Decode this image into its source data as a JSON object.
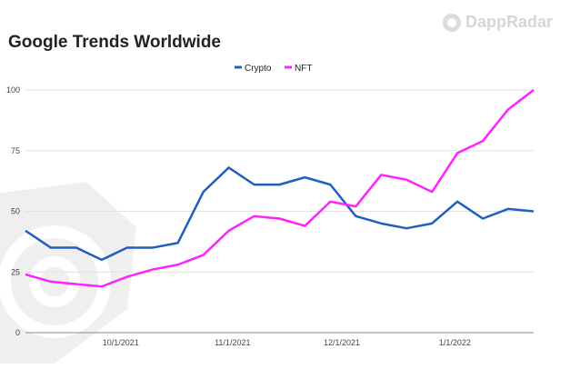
{
  "logo": {
    "text": "DappRadar"
  },
  "chart_data": {
    "type": "line",
    "title": "Google Trends Worldwide",
    "xlabel": "",
    "ylabel": "",
    "ylim": [
      0,
      100
    ],
    "yticks": [
      "0",
      "25",
      "50",
      "75",
      "100"
    ],
    "xtick_labels": [
      "10/1/2021",
      "11/1/2021",
      "12/1/2021",
      "1/1/2022"
    ],
    "xtick_positions": [
      3.75,
      8.15,
      12.45,
      16.9
    ],
    "x": [
      0,
      1,
      2,
      3,
      4,
      5,
      6,
      7,
      8,
      9,
      10,
      11,
      12,
      13,
      14,
      15,
      16,
      17,
      18,
      19,
      20
    ],
    "legend_position": "top-center",
    "grid": true,
    "series": [
      {
        "name": "Crypto",
        "color": "#1f5fbf",
        "values": [
          42,
          35,
          35,
          30,
          35,
          35,
          37,
          58,
          68,
          61,
          61,
          64,
          61,
          48,
          45,
          43,
          45,
          54,
          47,
          51,
          50
        ]
      },
      {
        "name": "NFT",
        "color": "#ff22ff",
        "values": [
          24,
          21,
          20,
          19,
          23,
          26,
          28,
          32,
          42,
          48,
          47,
          44,
          54,
          52,
          65,
          63,
          58,
          74,
          79,
          92,
          100
        ]
      }
    ]
  }
}
